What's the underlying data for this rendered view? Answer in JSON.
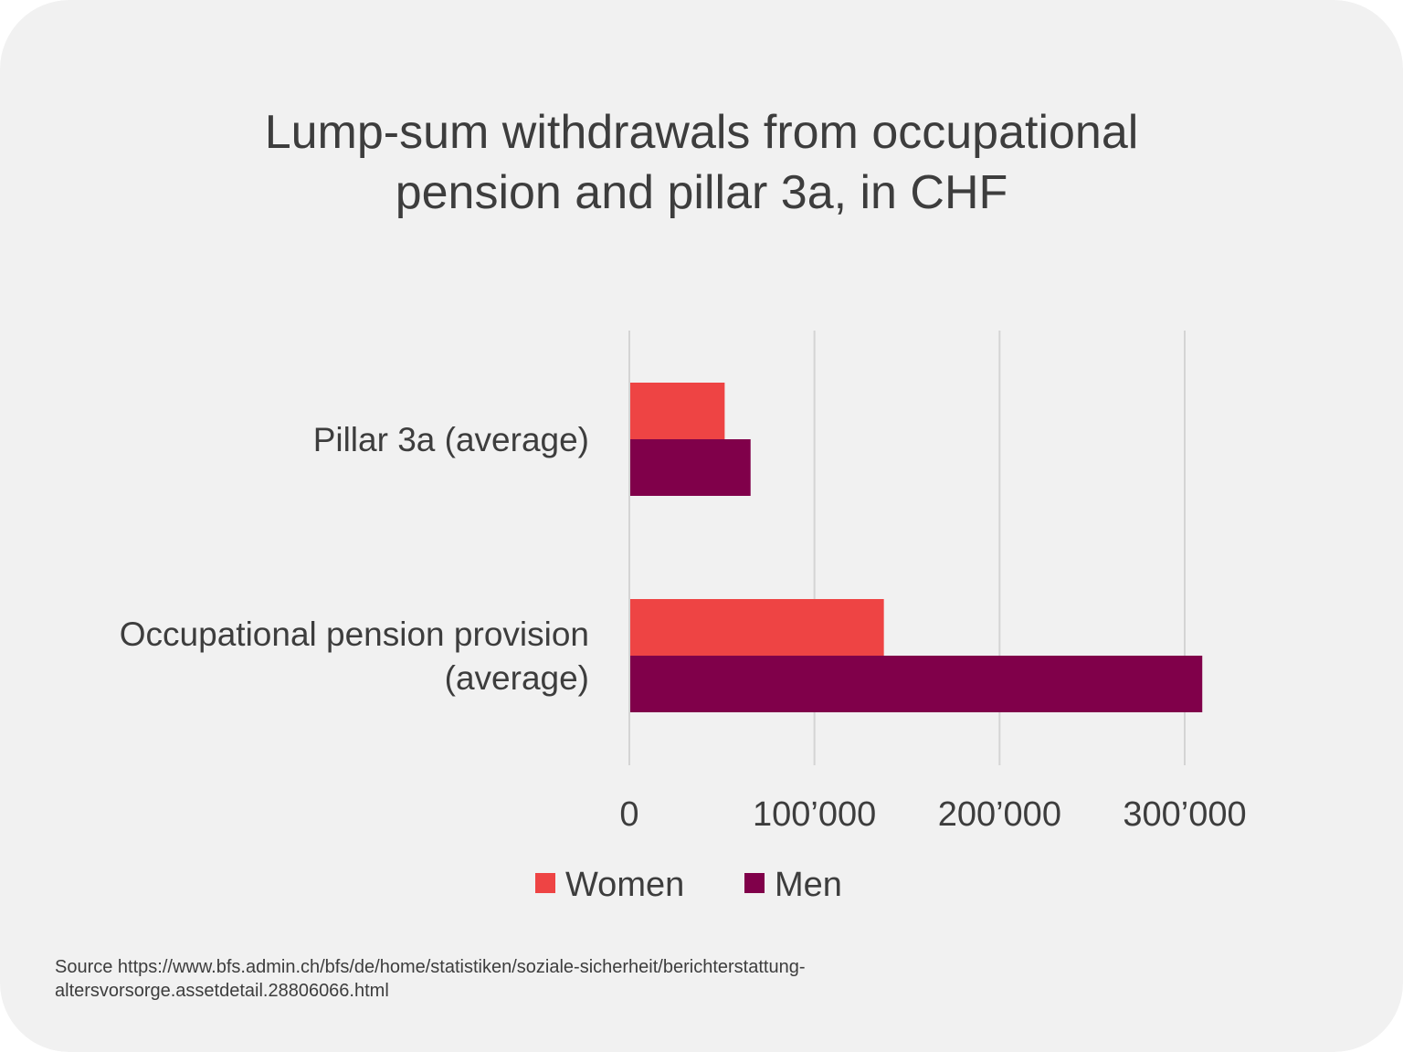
{
  "title_lines": [
    "Lump-sum withdrawals from occupational",
    "pension and pillar 3a, in CHF"
  ],
  "source_lines": [
    "Source https://www.bfs.admin.ch/bfs/de/home/statistiken/soziale-sicherheit/berichterstattung-",
    "altersvorsorge.assetdetail.28806066.html"
  ],
  "colors": {
    "background": "#f1f1f1",
    "women": "#ee4444",
    "men": "#80004a",
    "grid": "#d4d4d4",
    "text": "#3d3d3d"
  },
  "chart_data": {
    "type": "bar",
    "orientation": "horizontal",
    "categories": [
      [
        "Pillar 3a (average)"
      ],
      [
        "Occupational pension provision",
        "(average)"
      ]
    ],
    "series": [
      {
        "name": "Women",
        "color": "#ee4444",
        "values": [
          51000,
          137000
        ]
      },
      {
        "name": "Men",
        "color": "#80004a",
        "values": [
          65000,
          309000
        ]
      }
    ],
    "xticks": [
      0,
      100000,
      200000,
      300000
    ],
    "xtick_labels": [
      "0",
      "100’000",
      "200’000",
      "300’000"
    ],
    "xlim": [
      0,
      300000
    ],
    "grid": true,
    "legend": "bottom"
  }
}
